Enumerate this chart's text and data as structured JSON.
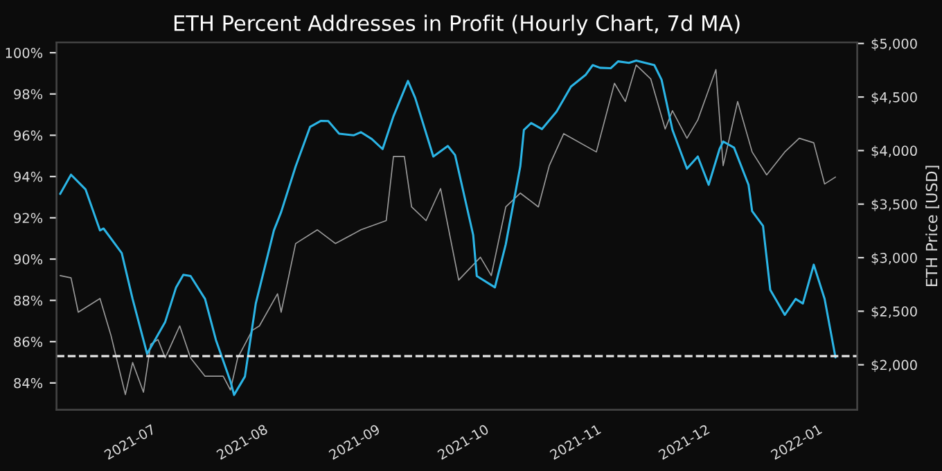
{
  "chart_data": {
    "type": "line",
    "title": "ETH Percent Addresses in Profit (Hourly Chart, 7d MA)",
    "y2label": "ETH Price [USD]",
    "xlim": [
      "2021-06-03",
      "2022-01-10"
    ],
    "xticks": [
      {
        "value": "2021-07-01",
        "label": "2021-07"
      },
      {
        "value": "2021-08-01",
        "label": "2021-08"
      },
      {
        "value": "2021-09-01",
        "label": "2021-09"
      },
      {
        "value": "2021-10-01",
        "label": "2021-10"
      },
      {
        "value": "2021-11-01",
        "label": "2021-11"
      },
      {
        "value": "2021-12-01",
        "label": "2021-12"
      },
      {
        "value": "2022-01-01",
        "label": "2022-01"
      }
    ],
    "ylim": [
      82.7,
      100.5
    ],
    "yticks": [
      {
        "value": 84,
        "label": "84%"
      },
      {
        "value": 86,
        "label": "86%"
      },
      {
        "value": 88,
        "label": "88%"
      },
      {
        "value": 90,
        "label": "90%"
      },
      {
        "value": 92,
        "label": "92%"
      },
      {
        "value": 94,
        "label": "94%"
      },
      {
        "value": 96,
        "label": "96%"
      },
      {
        "value": 98,
        "label": "98%"
      },
      {
        "value": 100,
        "label": "100%"
      }
    ],
    "y2lim": [
      1580,
      5010
    ],
    "y2ticks": [
      {
        "value": 2000,
        "label": "$2,000"
      },
      {
        "value": 2500,
        "label": "$2,500"
      },
      {
        "value": 3000,
        "label": "$3,000"
      },
      {
        "value": 3500,
        "label": "$3,500"
      },
      {
        "value": 4000,
        "label": "$4,000"
      },
      {
        "value": 4500,
        "label": "$4,500"
      },
      {
        "value": 5000,
        "label": "$5,000"
      }
    ],
    "grid": false,
    "legend": false,
    "ref_lines": [
      {
        "axis": "y",
        "value": 85.3,
        "color": "#e6e6e6",
        "line_style": "dashed"
      }
    ],
    "series": [
      {
        "axis": "y2",
        "color": "#9a9a9a",
        "x": [
          "2021-06-04",
          "2021-06-07",
          "2021-06-09",
          "2021-06-15",
          "2021-06-18",
          "2021-06-22",
          "2021-06-24",
          "2021-06-27",
          "2021-06-29",
          "2021-07-01",
          "2021-07-03",
          "2021-07-07",
          "2021-07-10",
          "2021-07-14",
          "2021-07-19",
          "2021-07-21",
          "2021-07-23",
          "2021-07-27",
          "2021-07-29",
          "2021-08-03",
          "2021-08-04",
          "2021-08-08",
          "2021-08-14",
          "2021-08-19",
          "2021-08-26",
          "2021-09-02",
          "2021-09-04",
          "2021-09-07",
          "2021-09-09",
          "2021-09-13",
          "2021-09-17",
          "2021-09-22",
          "2021-09-28",
          "2021-10-01",
          "2021-10-05",
          "2021-10-09",
          "2021-10-14",
          "2021-10-17",
          "2021-10-21",
          "2021-10-30",
          "2021-11-04",
          "2021-11-07",
          "2021-11-10",
          "2021-11-14",
          "2021-11-18",
          "2021-11-20",
          "2021-11-24",
          "2021-11-27",
          "2021-12-02",
          "2021-12-04",
          "2021-12-08",
          "2021-12-12",
          "2021-12-16",
          "2021-12-21",
          "2021-12-25",
          "2021-12-29",
          "2022-01-01",
          "2022-01-04"
        ],
        "values": [
          2833,
          2812,
          2491,
          2619,
          2278,
          1722,
          2021,
          1744,
          2192,
          2235,
          2064,
          2363,
          2064,
          1893,
          1893,
          1765,
          2064,
          2320,
          2363,
          2663,
          2491,
          3132,
          3260,
          3132,
          3260,
          3346,
          3945,
          3945,
          3474,
          3346,
          3645,
          2791,
          3004,
          2833,
          3474,
          3603,
          3474,
          3859,
          4158,
          3987,
          4628,
          4458,
          4799,
          4670,
          4201,
          4372,
          4115,
          4286,
          4756,
          3859,
          4458,
          3987,
          3773,
          3987,
          4115,
          4073,
          3688,
          3753
        ]
      },
      {
        "axis": "y",
        "color": "#2bb5e6",
        "x": [
          "2021-06-04",
          "2021-06-07",
          "2021-06-11",
          "2021-06-15",
          "2021-06-16",
          "2021-06-21",
          "2021-06-24",
          "2021-06-28",
          "2021-07-03",
          "2021-07-06",
          "2021-07-08",
          "2021-07-10",
          "2021-07-14",
          "2021-07-17",
          "2021-07-21",
          "2021-07-22",
          "2021-07-25",
          "2021-07-28",
          "2021-08-02",
          "2021-08-04",
          "2021-08-08",
          "2021-08-12",
          "2021-08-15",
          "2021-08-17",
          "2021-08-20",
          "2021-08-24",
          "2021-08-26",
          "2021-08-29",
          "2021-09-01",
          "2021-09-04",
          "2021-09-08",
          "2021-09-10",
          "2021-09-15",
          "2021-09-19",
          "2021-09-21",
          "2021-09-26",
          "2021-09-27",
          "2021-10-02",
          "2021-10-05",
          "2021-10-09",
          "2021-10-10",
          "2021-10-12",
          "2021-10-15",
          "2021-10-19",
          "2021-10-23",
          "2021-10-27",
          "2021-10-29",
          "2021-10-31",
          "2021-11-03",
          "2021-11-05",
          "2021-11-08",
          "2021-11-10",
          "2021-11-15",
          "2021-11-17",
          "2021-11-20",
          "2021-11-24",
          "2021-11-27",
          "2021-11-30",
          "2021-12-03",
          "2021-12-04",
          "2021-12-07",
          "2021-12-11",
          "2021-12-12",
          "2021-12-15",
          "2021-12-17",
          "2021-12-21",
          "2021-12-24",
          "2021-12-26",
          "2021-12-29",
          "2022-01-01",
          "2022-01-04"
        ],
        "values": [
          93.16,
          94.09,
          93.38,
          91.39,
          91.48,
          90.29,
          88.07,
          85.41,
          86.96,
          88.63,
          89.24,
          89.18,
          88.07,
          86.08,
          84.08,
          83.42,
          84.31,
          87.85,
          91.39,
          92.28,
          94.49,
          96.41,
          96.7,
          96.69,
          96.08,
          96.0,
          96.15,
          95.82,
          95.33,
          96.92,
          98.63,
          97.81,
          94.97,
          95.48,
          95.04,
          91.17,
          89.18,
          88.63,
          90.72,
          94.49,
          96.26,
          96.59,
          96.3,
          97.14,
          98.36,
          98.92,
          99.4,
          99.27,
          99.25,
          99.58,
          99.51,
          99.62,
          99.4,
          98.69,
          96.26,
          94.38,
          94.97,
          93.6,
          95.33,
          95.7,
          95.4,
          93.6,
          92.32,
          91.61,
          88.51,
          87.3,
          88.07,
          87.85,
          89.73,
          88.07,
          85.24
        ]
      }
    ]
  }
}
